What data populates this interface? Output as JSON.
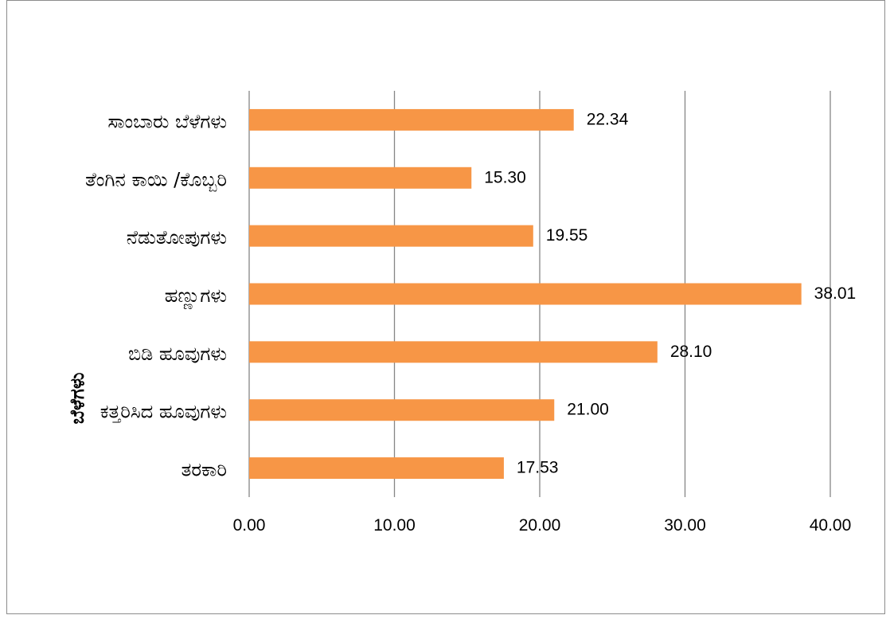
{
  "chart_data": {
    "type": "bar",
    "orientation": "horizontal",
    "categories": [
      "ಸಾಂಬಾರು ಬೆಳೆಗಳು",
      "ತೆಂಗಿನ ಕಾಯಿ /ಕೊಬ್ಬರಿ",
      "ನೆಡುತೋಪುಗಳು",
      "ಹಣ್ಣುಗಳು",
      "ಬಿಡಿ ಹೂವುಗಳು",
      "ಕತ್ತರಿಸಿದ ಹೂವುಗಳು",
      "ತರಕಾರಿ"
    ],
    "values": [
      22.34,
      15.3,
      19.55,
      38.01,
      28.1,
      21.0,
      17.53
    ],
    "data_labels": [
      "22.34",
      "15.30",
      "19.55",
      "38.01",
      "28.10",
      "21.00",
      "17.53"
    ],
    "x_ticks": [
      "0.00",
      "10.00",
      "20.00",
      "30.00",
      "40.00"
    ],
    "xlim": [
      0,
      40
    ],
    "ylabel": "ಬೆಳೆಗಳು",
    "title": "",
    "xlabel": "",
    "grid": "vertical",
    "legend": "none",
    "bar_color": "#F79646",
    "grid_color": "#868686"
  }
}
